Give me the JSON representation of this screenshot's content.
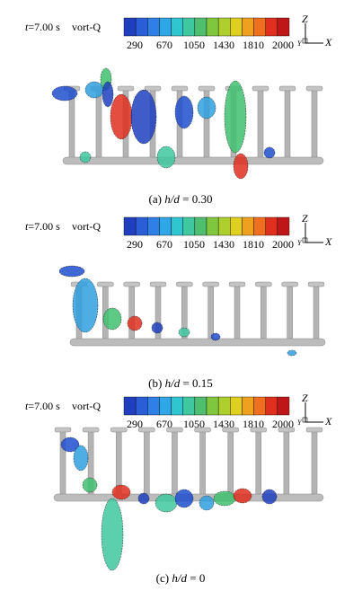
{
  "panels": [
    {
      "time_var": "t",
      "time_value": "=7.00 s",
      "legend_title": "vort-Q",
      "colorbar_ticks": [
        290,
        670,
        1050,
        1430,
        1810,
        2000
      ],
      "axes": {
        "z": "Z",
        "y": "Y",
        "x": "X"
      },
      "caption": {
        "label": "(a)",
        "param": "h/d",
        "value": "= 0.30"
      }
    },
    {
      "time_var": "t",
      "time_value": "=7.00 s",
      "legend_title": "vort-Q",
      "colorbar_ticks": [
        290,
        670,
        1050,
        1430,
        1810,
        2000
      ],
      "axes": {
        "z": "Z",
        "y": "Y",
        "x": "X"
      },
      "caption": {
        "label": "(b)",
        "param": "h/d",
        "value": "= 0.15"
      }
    },
    {
      "time_var": "t",
      "time_value": "=7.00 s",
      "legend_title": "vort-Q",
      "colorbar_ticks": [
        290,
        670,
        1050,
        1430,
        1810,
        2000
      ],
      "axes": {
        "z": "Z",
        "y": "Y",
        "x": "X"
      },
      "caption": {
        "label": "(c)",
        "param": "h/d",
        "value": "= 0"
      }
    }
  ]
}
